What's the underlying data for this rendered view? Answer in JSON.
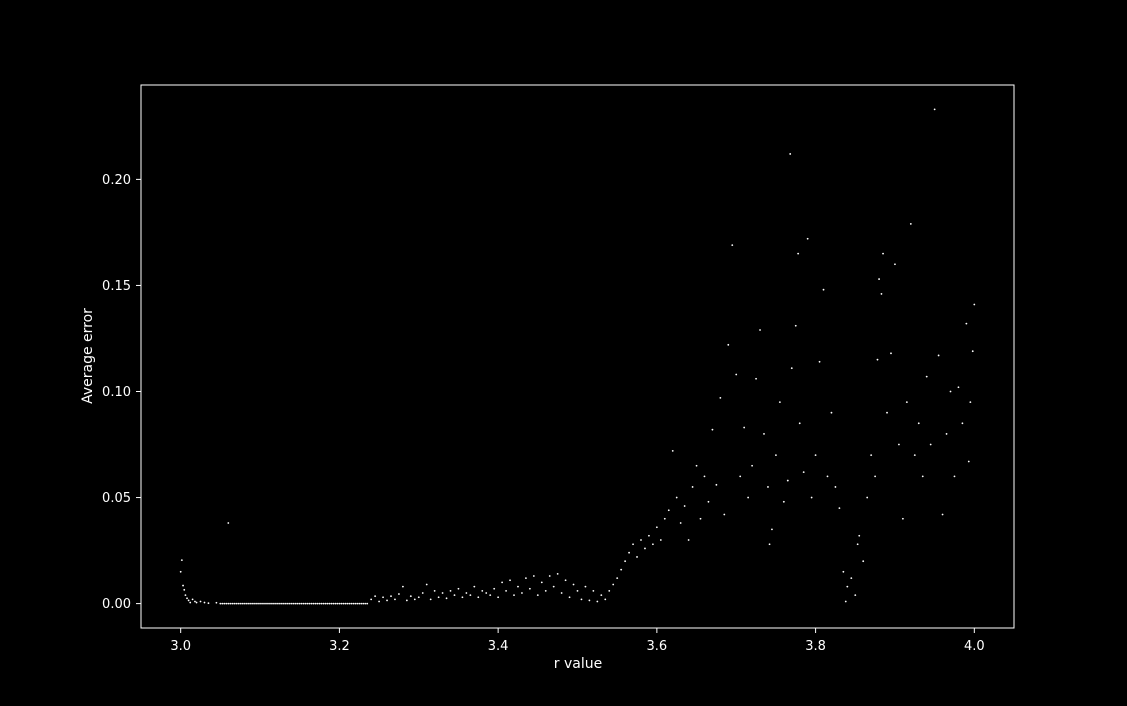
{
  "chart_data": {
    "type": "scatter",
    "title": "",
    "xlabel": "r value",
    "ylabel": "Average error",
    "xlim": [
      2.95,
      4.05
    ],
    "ylim": [
      -0.0115,
      0.2445
    ],
    "xticks": [
      3.0,
      3.2,
      3.4,
      3.6,
      3.8,
      4.0
    ],
    "xtick_labels": [
      "3.0",
      "3.2",
      "3.4",
      "3.6",
      "3.8",
      "4.0"
    ],
    "yticks": [
      0.0,
      0.05,
      0.1,
      0.15,
      0.2
    ],
    "ytick_labels": [
      "0.00",
      "0.05",
      "0.10",
      "0.15",
      "0.20"
    ],
    "grid": false,
    "legend": "none",
    "colors": {
      "background": "#000000",
      "axes": "#ffffff",
      "points": "#ffffff"
    },
    "series": [
      {
        "points": [
          [
            3.0,
            0.015
          ],
          [
            3.0015,
            0.0205
          ],
          [
            3.003,
            0.0085
          ],
          [
            3.0045,
            0.0065
          ],
          [
            3.006,
            0.004
          ],
          [
            3.008,
            0.0025
          ],
          [
            3.01,
            0.0015
          ],
          [
            3.012,
            0.0005
          ],
          [
            3.015,
            0.002
          ],
          [
            3.018,
            0.001
          ],
          [
            3.02,
            0.0005
          ],
          [
            3.025,
            0.001
          ],
          [
            3.03,
            0.0005
          ],
          [
            3.035,
            0.0002
          ],
          [
            3.045,
            0.0004
          ],
          [
            3.06,
            0.038
          ],
          [
            3.24,
            0.002
          ],
          [
            3.245,
            0.0035
          ],
          [
            3.25,
            0.001
          ],
          [
            3.255,
            0.003
          ],
          [
            3.26,
            0.0015
          ],
          [
            3.265,
            0.0035
          ],
          [
            3.27,
            0.002
          ],
          [
            3.275,
            0.0045
          ],
          [
            3.28,
            0.008
          ],
          [
            3.285,
            0.0015
          ],
          [
            3.29,
            0.0035
          ],
          [
            3.295,
            0.002
          ],
          [
            3.3,
            0.003
          ],
          [
            3.305,
            0.005
          ],
          [
            3.31,
            0.009
          ],
          [
            3.315,
            0.002
          ],
          [
            3.32,
            0.006
          ],
          [
            3.325,
            0.003
          ],
          [
            3.33,
            0.005
          ],
          [
            3.335,
            0.0025
          ],
          [
            3.34,
            0.006
          ],
          [
            3.345,
            0.004
          ],
          [
            3.35,
            0.007
          ],
          [
            3.355,
            0.003
          ],
          [
            3.36,
            0.005
          ],
          [
            3.365,
            0.004
          ],
          [
            3.37,
            0.008
          ],
          [
            3.375,
            0.003
          ],
          [
            3.38,
            0.006
          ],
          [
            3.385,
            0.005
          ],
          [
            3.39,
            0.004
          ],
          [
            3.395,
            0.007
          ],
          [
            3.4,
            0.003
          ],
          [
            3.405,
            0.01
          ],
          [
            3.41,
            0.006
          ],
          [
            3.415,
            0.011
          ],
          [
            3.42,
            0.004
          ],
          [
            3.425,
            0.008
          ],
          [
            3.43,
            0.005
          ],
          [
            3.435,
            0.012
          ],
          [
            3.44,
            0.007
          ],
          [
            3.445,
            0.013
          ],
          [
            3.45,
            0.004
          ],
          [
            3.455,
            0.01
          ],
          [
            3.46,
            0.006
          ],
          [
            3.465,
            0.013
          ],
          [
            3.47,
            0.008
          ],
          [
            3.475,
            0.014
          ],
          [
            3.48,
            0.005
          ],
          [
            3.485,
            0.011
          ],
          [
            3.49,
            0.003
          ],
          [
            3.495,
            0.009
          ],
          [
            3.5,
            0.006
          ],
          [
            3.505,
            0.002
          ],
          [
            3.51,
            0.008
          ],
          [
            3.515,
            0.0015
          ],
          [
            3.52,
            0.006
          ],
          [
            3.525,
            0.001
          ],
          [
            3.53,
            0.004
          ],
          [
            3.535,
            0.002
          ],
          [
            3.54,
            0.006
          ],
          [
            3.545,
            0.009
          ],
          [
            3.55,
            0.012
          ],
          [
            3.555,
            0.016
          ],
          [
            3.56,
            0.02
          ],
          [
            3.565,
            0.024
          ],
          [
            3.57,
            0.028
          ],
          [
            3.575,
            0.022
          ],
          [
            3.58,
            0.03
          ],
          [
            3.585,
            0.026
          ],
          [
            3.59,
            0.032
          ],
          [
            3.595,
            0.028
          ],
          [
            3.6,
            0.036
          ],
          [
            3.605,
            0.03
          ],
          [
            3.61,
            0.04
          ],
          [
            3.615,
            0.044
          ],
          [
            3.62,
            0.072
          ],
          [
            3.625,
            0.05
          ],
          [
            3.63,
            0.038
          ],
          [
            3.635,
            0.046
          ],
          [
            3.64,
            0.03
          ],
          [
            3.645,
            0.055
          ],
          [
            3.65,
            0.065
          ],
          [
            3.655,
            0.04
          ],
          [
            3.66,
            0.06
          ],
          [
            3.665,
            0.048
          ],
          [
            3.67,
            0.082
          ],
          [
            3.675,
            0.056
          ],
          [
            3.68,
            0.097
          ],
          [
            3.685,
            0.042
          ],
          [
            3.69,
            0.122
          ],
          [
            3.695,
            0.169
          ],
          [
            3.7,
            0.108
          ],
          [
            3.705,
            0.06
          ],
          [
            3.71,
            0.083
          ],
          [
            3.715,
            0.05
          ],
          [
            3.72,
            0.065
          ],
          [
            3.725,
            0.106
          ],
          [
            3.73,
            0.129
          ],
          [
            3.735,
            0.08
          ],
          [
            3.74,
            0.055
          ],
          [
            3.742,
            0.028
          ],
          [
            3.745,
            0.035
          ],
          [
            3.75,
            0.07
          ],
          [
            3.755,
            0.095
          ],
          [
            3.76,
            0.048
          ],
          [
            3.765,
            0.058
          ],
          [
            3.768,
            0.212
          ],
          [
            3.77,
            0.111
          ],
          [
            3.775,
            0.131
          ],
          [
            3.778,
            0.165
          ],
          [
            3.78,
            0.085
          ],
          [
            3.785,
            0.062
          ],
          [
            3.79,
            0.172
          ],
          [
            3.795,
            0.05
          ],
          [
            3.8,
            0.07
          ],
          [
            3.805,
            0.114
          ],
          [
            3.81,
            0.148
          ],
          [
            3.815,
            0.06
          ],
          [
            3.82,
            0.09
          ],
          [
            3.825,
            0.055
          ],
          [
            3.83,
            0.045
          ],
          [
            3.835,
            0.015
          ],
          [
            3.838,
            0.001
          ],
          [
            3.84,
            0.008
          ],
          [
            3.845,
            0.012
          ],
          [
            3.85,
            0.004
          ],
          [
            3.853,
            0.028
          ],
          [
            3.855,
            0.032
          ],
          [
            3.86,
            0.02
          ],
          [
            3.865,
            0.05
          ],
          [
            3.87,
            0.07
          ],
          [
            3.875,
            0.06
          ],
          [
            3.878,
            0.115
          ],
          [
            3.88,
            0.153
          ],
          [
            3.883,
            0.146
          ],
          [
            3.885,
            0.165
          ],
          [
            3.89,
            0.09
          ],
          [
            3.895,
            0.118
          ],
          [
            3.9,
            0.16
          ],
          [
            3.905,
            0.075
          ],
          [
            3.91,
            0.04
          ],
          [
            3.915,
            0.095
          ],
          [
            3.92,
            0.179
          ],
          [
            3.925,
            0.07
          ],
          [
            3.93,
            0.085
          ],
          [
            3.935,
            0.06
          ],
          [
            3.94,
            0.107
          ],
          [
            3.945,
            0.075
          ],
          [
            3.95,
            0.233
          ],
          [
            3.955,
            0.117
          ],
          [
            3.96,
            0.042
          ],
          [
            3.965,
            0.08
          ],
          [
            3.97,
            0.1
          ],
          [
            3.975,
            0.06
          ],
          [
            3.98,
            0.102
          ],
          [
            3.985,
            0.085
          ],
          [
            3.99,
            0.132
          ],
          [
            3.993,
            0.067
          ],
          [
            3.995,
            0.095
          ],
          [
            3.998,
            0.119
          ],
          [
            4.0,
            0.141
          ]
        ],
        "flat_segment": {
          "x_start": 3.05,
          "x_end": 3.235,
          "y": 0.0
        }
      }
    ]
  }
}
